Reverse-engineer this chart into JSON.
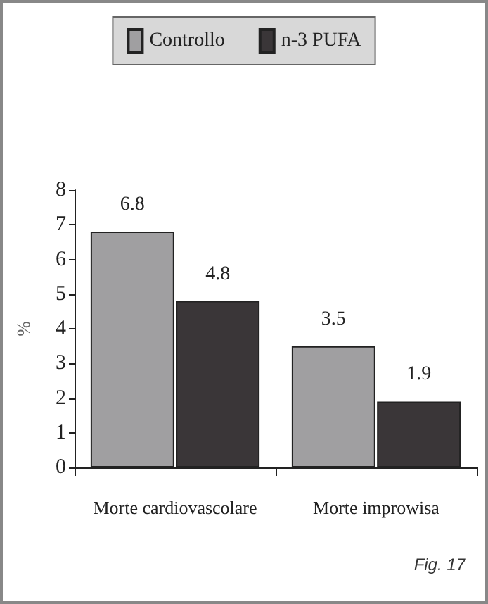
{
  "chart_data": {
    "type": "bar",
    "ylabel": "%",
    "categories": [
      "Morte cardiovascolare",
      "Morte improwisa"
    ],
    "series": [
      {
        "name": "Controllo",
        "color": "#a09fa1",
        "values": [
          6.8,
          3.5
        ]
      },
      {
        "name": "n-3 PUFA",
        "color": "#3a3638",
        "values": [
          4.8,
          1.9
        ]
      }
    ],
    "ylim": [
      0,
      8
    ],
    "yticks": [
      0,
      1,
      2,
      3,
      4,
      5,
      6,
      7,
      8
    ],
    "data_labels": true,
    "legend": "top",
    "grid": false,
    "annotations": [
      "Fig. 17"
    ]
  }
}
